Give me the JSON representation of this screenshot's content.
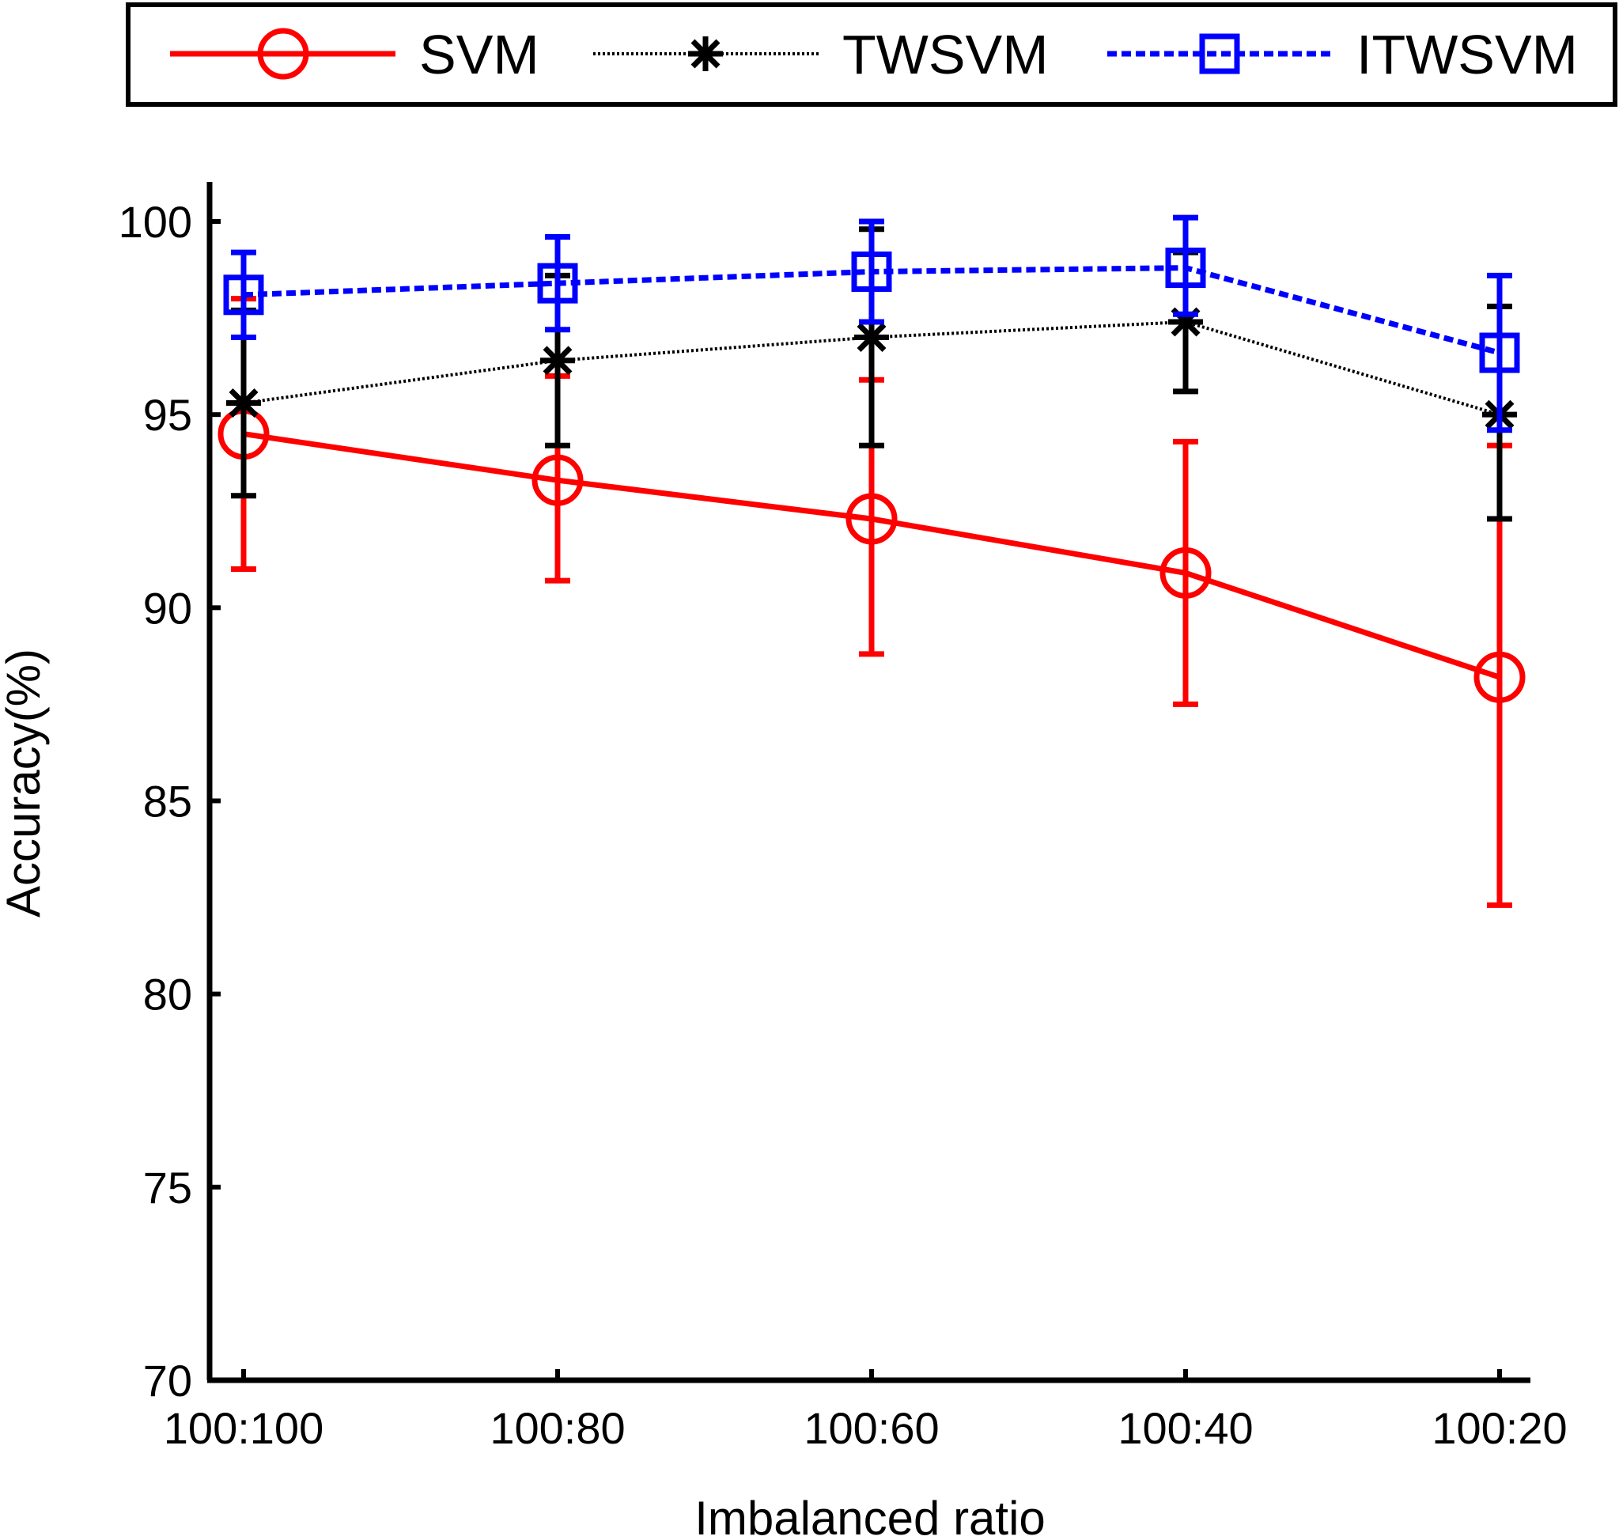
{
  "chart_data": {
    "type": "line",
    "title": "",
    "xlabel": "Imbalanced ratio",
    "ylabel": "Accuracy(%)",
    "categories": [
      "100:100",
      "100:80",
      "100:60",
      "100:40",
      "100:20"
    ],
    "ylim": [
      70,
      101
    ],
    "yticks": [
      70,
      75,
      80,
      85,
      90,
      95,
      100
    ],
    "legend_position": "top",
    "series": [
      {
        "name": "SVM",
        "color": "#ff0000",
        "line_style": "solid",
        "marker": "circle",
        "values": [
          94.5,
          93.3,
          92.3,
          90.9,
          88.2
        ],
        "error_low": [
          91.0,
          90.7,
          88.8,
          87.5,
          82.3
        ],
        "error_high": [
          98.0,
          96.0,
          95.9,
          94.3,
          94.2
        ]
      },
      {
        "name": "TWSVM",
        "color": "#000000",
        "line_style": "dotted",
        "marker": "asterisk",
        "values": [
          95.3,
          96.4,
          97.0,
          97.4,
          95.0
        ],
        "error_low": [
          92.9,
          94.2,
          94.2,
          95.6,
          92.3
        ],
        "error_high": [
          97.7,
          98.6,
          99.8,
          99.2,
          97.8
        ]
      },
      {
        "name": "ITWSVM",
        "color": "#0000ff",
        "line_style": "dashed",
        "marker": "square",
        "values": [
          98.1,
          98.4,
          98.7,
          98.8,
          96.6
        ],
        "error_low": [
          97.0,
          97.2,
          97.4,
          97.6,
          94.6
        ],
        "error_high": [
          99.2,
          99.6,
          100.0,
          100.1,
          98.6
        ]
      }
    ]
  }
}
